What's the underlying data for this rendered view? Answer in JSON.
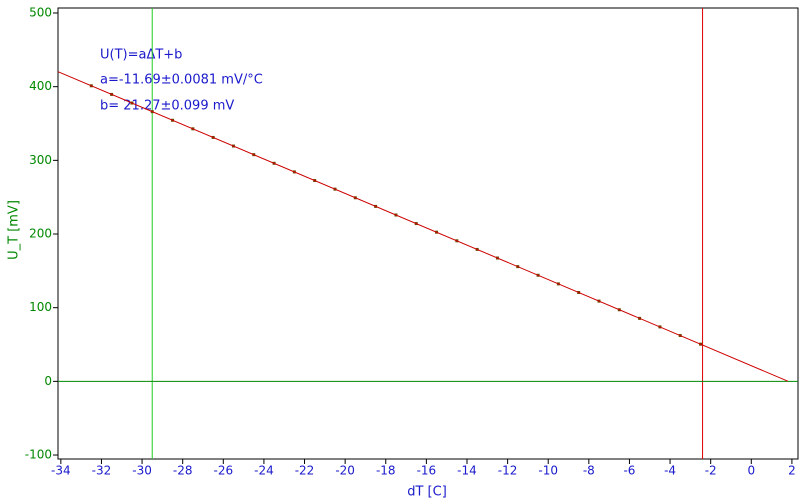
{
  "chart_data": {
    "type": "scatter",
    "x_label": "dT [C]",
    "y_label": "U_T [mV]",
    "annotations": [
      "U(T)=aΔT+b",
      "a=-11.69±0.0081 mV/°C",
      "b= 21.27±0.099 mV"
    ],
    "xlim": [
      -34.14,
      2.3
    ],
    "ylim": [
      -105.4,
      506.8
    ],
    "xticks": [
      -34,
      -32,
      -30,
      -28,
      -26,
      -24,
      -22,
      -20,
      -18,
      -16,
      -14,
      -12,
      -10,
      -8,
      -6,
      -4,
      -2,
      0,
      2
    ],
    "yticks": [
      -100,
      0,
      100,
      200,
      300,
      400,
      500
    ],
    "series": [
      {
        "name": "U_T",
        "color": "#6b4a00",
        "kind": "points",
        "x": [
          -32.5,
          -31.5,
          -30.5,
          -29.5,
          -28.5,
          -27.5,
          -26.5,
          -25.5,
          -24.5,
          -23.5,
          -22.5,
          -21.5,
          -20.5,
          -19.5,
          -18.5,
          -17.5,
          -16.5,
          -15.5,
          -14.5,
          -13.5,
          -12.5,
          -11.5,
          -10.5,
          -9.5,
          -8.5,
          -7.5,
          -6.5,
          -5.5,
          -4.5,
          -3.5,
          -2.5
        ],
        "values": [
          401.2,
          389.5,
          377.8,
          366.1,
          354.4,
          342.8,
          331.1,
          319.4,
          307.7,
          296.0,
          284.3,
          272.6,
          260.9,
          249.2,
          237.5,
          225.8,
          214.2,
          202.5,
          190.8,
          179.1,
          167.4,
          155.7,
          144.0,
          132.3,
          120.6,
          108.9,
          97.2,
          85.5,
          73.9,
          62.2,
          50.5
        ]
      },
      {
        "name": "fit",
        "color": "#cc0000",
        "kind": "line",
        "x": [
          -34.14,
          1.8
        ],
        "values": [
          420.4,
          0.2
        ]
      }
    ],
    "cursors": [
      {
        "axis": "x",
        "value": -29.5,
        "color": "#22cc22"
      },
      {
        "axis": "x",
        "value": -2.4,
        "color": "#dd0000"
      },
      {
        "axis": "y",
        "value": 0,
        "color": "#008800"
      }
    ]
  }
}
